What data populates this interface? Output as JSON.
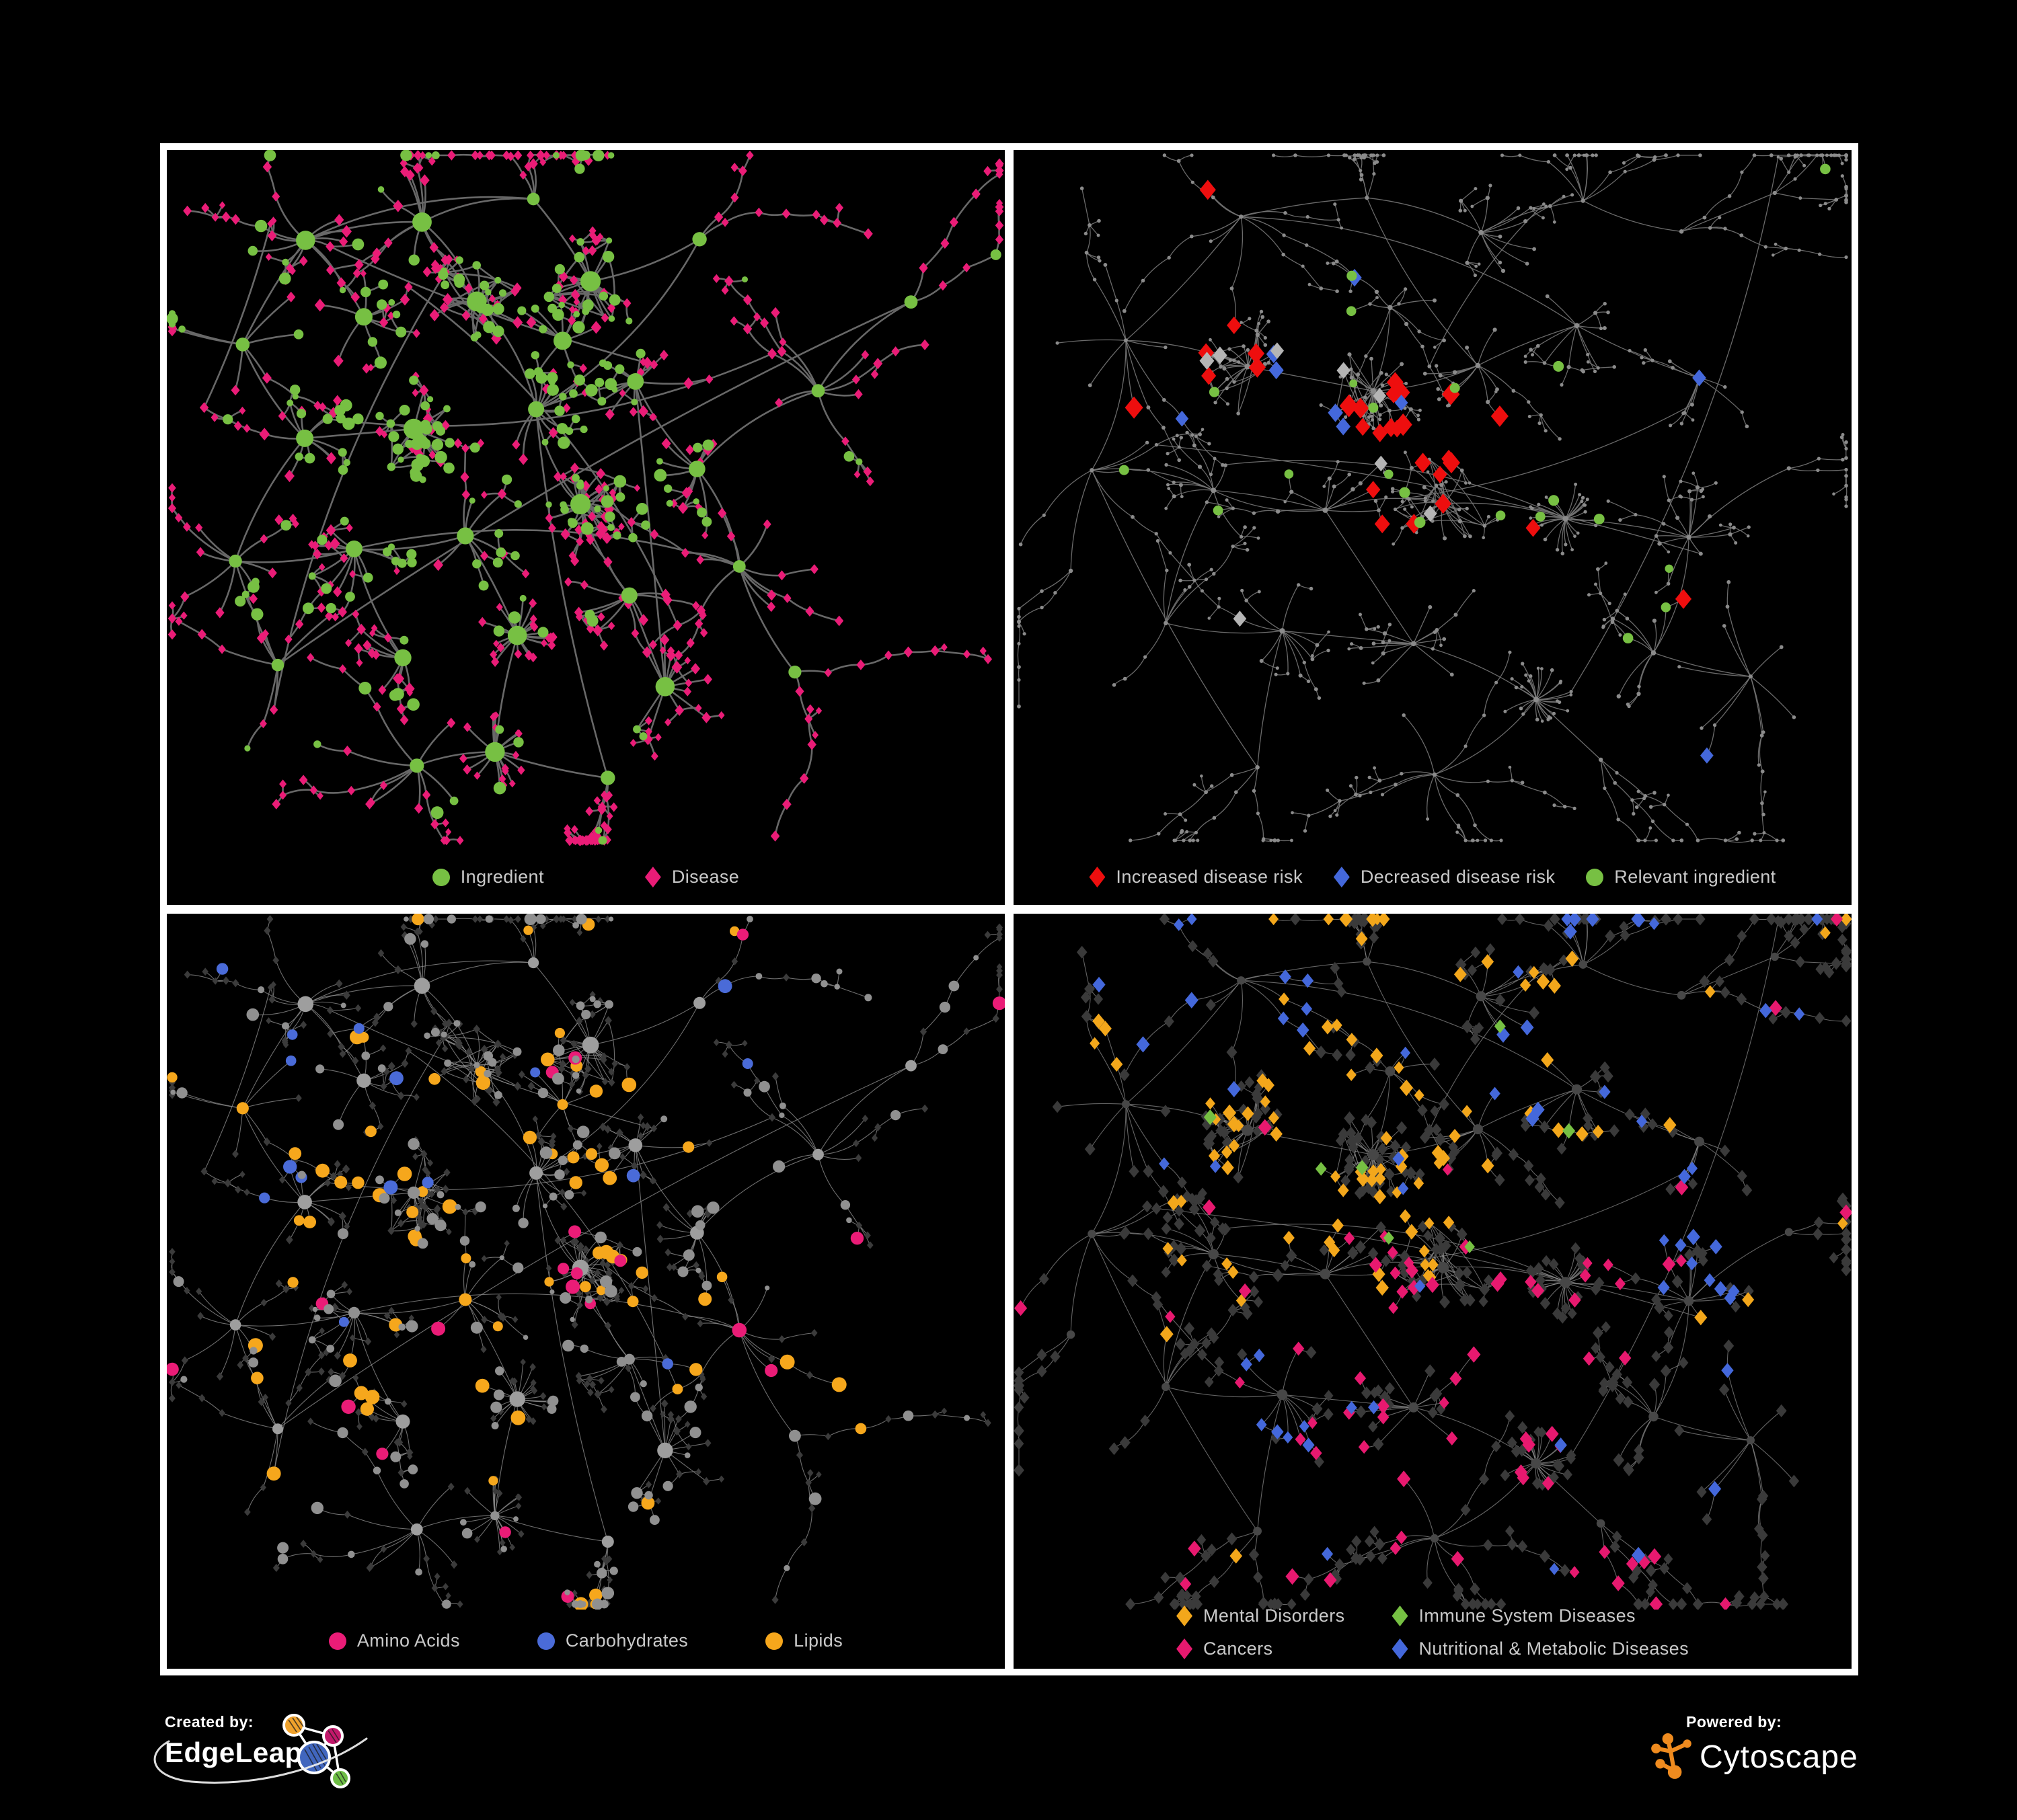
{
  "page": {
    "background": "#000000",
    "frame_color": "#ffffff",
    "panel_background": "#000000",
    "legend_text_color": "#c9c9c9"
  },
  "panels": [
    {
      "id": "ingredient-disease",
      "layout": "left",
      "legend": {
        "rows": 1,
        "items": [
          {
            "label": "Ingredient",
            "shape": "circle",
            "color": "#77C043"
          },
          {
            "label": "Disease",
            "shape": "diamond",
            "color": "#EA1C77"
          }
        ]
      },
      "style": {
        "seed": 11,
        "highlightHubs": false,
        "edge": {
          "color": "#686868",
          "width": 2.6,
          "opacity": 1
        },
        "base": {
          "shape": "diamond",
          "color": "#EA1C77",
          "smin": 5,
          "smax": 9.5
        },
        "hub": {
          "shape": "circle",
          "color": "#77C043",
          "smin": 8,
          "smax": 16
        },
        "highlights": [
          {
            "name": "ingredient-leaves",
            "shape": "circle",
            "color": "#77C043",
            "count": 235,
            "size": 7,
            "sizeJit": 2.5,
            "base": 0.25,
            "foci": [
              [
                0.5,
                0.2,
                0.08
              ],
              [
                0.44,
                0.4,
                0.16
              ],
              [
                0.3,
                0.45,
                0.22
              ]
            ]
          }
        ]
      }
    },
    {
      "id": "disease-risk",
      "layout": "right",
      "legend": {
        "rows": 1,
        "items": [
          {
            "label": "Increased disease risk",
            "shape": "diamond",
            "color": "#EE0E0E"
          },
          {
            "label": "Decreased disease risk",
            "shape": "diamond",
            "color": "#4468DB"
          },
          {
            "label": "Relevant ingredient",
            "shape": "circle",
            "color": "#77C043"
          }
        ]
      },
      "style": {
        "seed": 22,
        "highlightHubs": true,
        "edge": {
          "color": "#757575",
          "width": 1.3,
          "opacity": 0.9
        },
        "base": {
          "shape": "circle",
          "color": "#8b8b8b",
          "smin": 2.3,
          "smax": 3.4
        },
        "hub": {
          "shape": "circle",
          "color": "#8b8b8b",
          "smin": 2.8,
          "smax": 4.4
        },
        "highlights": [
          {
            "name": "increased-risk",
            "shape": "diamond",
            "color": "#EE0E0E",
            "count": 30,
            "size": 13.5,
            "sizeJit": 2,
            "base": 0.03,
            "foci": [
              [
                0.38,
                0.36,
                0.12
              ],
              [
                0.54,
                0.42,
                0.1
              ],
              [
                0.7,
                0.72,
                0.05
              ]
            ]
          },
          {
            "name": "decreased-risk",
            "shape": "diamond",
            "color": "#4468DB",
            "count": 9,
            "size": 11.5,
            "sizeJit": 1,
            "base": 0.02,
            "foci": [
              [
                0.33,
                0.36,
                0.05
              ],
              [
                0.825,
                0.34,
                0.03
              ]
            ]
          },
          {
            "name": "unchanged-risk",
            "shape": "diamond",
            "color": "#B5B5B5",
            "count": 8,
            "size": 11,
            "sizeJit": 1,
            "base": 0.02,
            "foci": [
              [
                0.42,
                0.5,
                0.1
              ],
              [
                0.3,
                0.3,
                0.1
              ]
            ]
          },
          {
            "name": "relevant-ingredient",
            "shape": "circle",
            "color": "#77C043",
            "count": 21,
            "size": 7.5,
            "sizeJit": 1.5,
            "base": 0.05,
            "foci": [
              [
                0.37,
                0.38,
                0.1
              ],
              [
                0.55,
                0.5,
                0.15
              ],
              [
                0.79,
                0.35,
                0.04
              ]
            ]
          }
        ]
      }
    },
    {
      "id": "compound-class",
      "layout": "left",
      "legend": {
        "rows": 1,
        "items": [
          {
            "label": "Amino Acids",
            "shape": "circle",
            "color": "#EA1C77"
          },
          {
            "label": "Carbohydrates",
            "shape": "circle",
            "color": "#4A6BD8"
          },
          {
            "label": "Lipids",
            "shape": "circle",
            "color": "#F6A71C"
          }
        ]
      },
      "style": {
        "seed": 33,
        "highlightHubs": true,
        "edge": {
          "color": "#8a8a8a",
          "width": 1.1,
          "opacity": 0.8
        },
        "base": {
          "shape": "diamond",
          "color": "#3b3b3b",
          "smin": 4.5,
          "smax": 6.5
        },
        "hub": {
          "shape": "circle",
          "color": "#9e9e9e",
          "smin": 7,
          "smax": 13
        },
        "highlights": [
          {
            "name": "lipids",
            "shape": "circle",
            "color": "#F6A71C",
            "count": 74,
            "size": 9,
            "sizeJit": 2,
            "base": 0.12,
            "foci": [
              [
                0.5,
                0.2,
                0.07
              ],
              [
                0.43,
                0.38,
                0.13
              ],
              [
                0.3,
                0.55,
                0.3
              ]
            ]
          },
          {
            "name": "carbohydrates",
            "shape": "circle",
            "color": "#4A6BD8",
            "count": 16,
            "size": 9,
            "sizeJit": 1.5,
            "base": 0.06,
            "foci": [
              [
                0.52,
                0.21,
                0.05
              ],
              [
                0.12,
                0.3,
                0.15
              ]
            ]
          },
          {
            "name": "amino-acids",
            "shape": "circle",
            "color": "#EA1C77",
            "count": 20,
            "size": 9.5,
            "sizeJit": 1.5,
            "base": 0.5,
            "foci": [
              [
                0.3,
                0.62,
                0.25
              ],
              [
                0.6,
                0.75,
                0.2
              ]
            ]
          },
          {
            "name": "other-ingredients",
            "shape": "circle",
            "color": "#909090",
            "count": 185,
            "size": 6.5,
            "sizeJit": 3,
            "base": 1,
            "foci": []
          }
        ]
      }
    },
    {
      "id": "disease-class",
      "layout": "right",
      "legend": {
        "rows": 2,
        "items": [
          {
            "label": "Mental Disorders",
            "shape": "diamond",
            "color": "#F3A71B"
          },
          {
            "label": "Immune System Diseases",
            "shape": "diamond",
            "color": "#76C043"
          },
          {
            "label": "Cancers",
            "shape": "diamond",
            "color": "#E7196F"
          },
          {
            "label": "Nutritional & Metabolic Diseases",
            "shape": "diamond",
            "color": "#4468DB"
          }
        ]
      },
      "style": {
        "seed": 44,
        "highlightHubs": false,
        "edge": {
          "color": "#8f8f8f",
          "width": 1.1,
          "opacity": 0.7
        },
        "base": {
          "shape": "diamond",
          "color": "#3a3a3a",
          "smin": 7.5,
          "smax": 9.5
        },
        "hub": {
          "shape": "circle",
          "color": "#474747",
          "smin": 5.5,
          "smax": 8.5
        },
        "highlights": [
          {
            "name": "mental-disorders",
            "shape": "diamond",
            "color": "#F3A71B",
            "count": 100,
            "size": 9.5,
            "sizeJit": 1.5,
            "base": 0.04,
            "foci": [
              [
                0.29,
                0.5,
                0.09
              ],
              [
                0.33,
                0.28,
                0.16
              ],
              [
                0.52,
                0.08,
                0.2
              ]
            ]
          },
          {
            "name": "cancers",
            "shape": "diamond",
            "color": "#E7196F",
            "count": 72,
            "size": 9.5,
            "sizeJit": 1.5,
            "base": 0.04,
            "foci": [
              [
                0.56,
                0.53,
                0.1
              ],
              [
                0.87,
                0.24,
                0.05
              ],
              [
                0.52,
                0.86,
                0.25
              ]
            ]
          },
          {
            "name": "nutritional-metabolic",
            "shape": "diamond",
            "color": "#4468DB",
            "count": 62,
            "size": 9.5,
            "sizeJit": 1.5,
            "base": 0.06,
            "foci": [
              [
                0.72,
                0.14,
                0.1
              ],
              [
                0.8,
                0.46,
                0.05
              ],
              [
                0.36,
                0.72,
                0.08
              ],
              [
                0.9,
                0.62,
                0.06
              ],
              [
                0.2,
                0.12,
                0.1
              ]
            ]
          },
          {
            "name": "immune-system",
            "shape": "diamond",
            "color": "#76C043",
            "count": 7,
            "size": 9.5,
            "sizeJit": 1,
            "base": 0.3,
            "foci": [
              [
                0.5,
                0.42,
                0.25
              ]
            ]
          }
        ]
      }
    }
  ],
  "network_layouts": {
    "left": {
      "seed": 7,
      "clusters": [
        [
          0.175,
          0.14,
          "med"
        ],
        [
          0.3,
          0.1,
          "med"
        ],
        [
          0.43,
          0.06,
          "chain"
        ],
        [
          0.1,
          0.28,
          "spray"
        ],
        [
          0.24,
          0.25,
          "med"
        ],
        [
          0.37,
          0.22,
          "dense"
        ],
        [
          0.5,
          0.2,
          "dense"
        ],
        [
          0.63,
          0.13,
          "chain"
        ],
        [
          0.16,
          0.42,
          "med"
        ],
        [
          0.29,
          0.4,
          "dense"
        ],
        [
          0.44,
          0.38,
          "med"
        ],
        [
          0.56,
          0.33,
          "med"
        ],
        [
          0.08,
          0.58,
          "spray"
        ],
        [
          0.22,
          0.57,
          "med"
        ],
        [
          0.36,
          0.55,
          "med"
        ],
        [
          0.5,
          0.5,
          "dense"
        ],
        [
          0.64,
          0.45,
          "med"
        ],
        [
          0.78,
          0.35,
          "spray"
        ],
        [
          0.88,
          0.22,
          "chain"
        ],
        [
          0.14,
          0.74,
          "spray"
        ],
        [
          0.28,
          0.72,
          "med"
        ],
        [
          0.42,
          0.7,
          "fan"
        ],
        [
          0.55,
          0.65,
          "med"
        ],
        [
          0.68,
          0.6,
          "spray"
        ],
        [
          0.4,
          0.86,
          "fan"
        ],
        [
          0.52,
          0.9,
          "chain"
        ],
        [
          0.3,
          0.88,
          "spray"
        ],
        [
          0.74,
          0.75,
          "chain"
        ],
        [
          0.6,
          0.78,
          "med"
        ],
        [
          0.47,
          0.27,
          "med"
        ]
      ]
    },
    "right": {
      "seed": 19,
      "clusters": [
        [
          0.28,
          0.1,
          "spray"
        ],
        [
          0.42,
          0.07,
          "chain"
        ],
        [
          0.55,
          0.12,
          "med"
        ],
        [
          0.68,
          0.08,
          "spray"
        ],
        [
          0.8,
          0.12,
          "chain"
        ],
        [
          0.91,
          0.07,
          "chain"
        ],
        [
          0.14,
          0.28,
          "spray"
        ],
        [
          0.28,
          0.32,
          "dense"
        ],
        [
          0.42,
          0.35,
          "dense"
        ],
        [
          0.55,
          0.3,
          "med"
        ],
        [
          0.68,
          0.25,
          "med"
        ],
        [
          0.82,
          0.33,
          "med"
        ],
        [
          0.1,
          0.47,
          "spray"
        ],
        [
          0.24,
          0.5,
          "med"
        ],
        [
          0.38,
          0.52,
          "med"
        ],
        [
          0.52,
          0.5,
          "dense"
        ],
        [
          0.66,
          0.52,
          "fan"
        ],
        [
          0.8,
          0.55,
          "med"
        ],
        [
          0.92,
          0.45,
          "chain"
        ],
        [
          0.18,
          0.68,
          "spray"
        ],
        [
          0.33,
          0.7,
          "med"
        ],
        [
          0.48,
          0.72,
          "med"
        ],
        [
          0.62,
          0.78,
          "fan"
        ],
        [
          0.76,
          0.72,
          "med"
        ],
        [
          0.88,
          0.75,
          "spray"
        ],
        [
          0.3,
          0.88,
          "chain"
        ],
        [
          0.5,
          0.9,
          "spray"
        ],
        [
          0.7,
          0.88,
          "chain"
        ],
        [
          0.06,
          0.6,
          "chain"
        ],
        [
          0.45,
          0.22,
          "med"
        ]
      ]
    }
  },
  "footer": {
    "created_by_label": "Created by:",
    "created_by_name": "EdgeLeap",
    "powered_by_label": "Powered by:",
    "powered_by_name": "Cytoscape",
    "edgeleap_glyph_colors": {
      "orange": "#F0A22C",
      "magenta": "#C2186B",
      "blue": "#4166BE",
      "green": "#6EBE45"
    },
    "cytoscape_glyph_color": "#EF8B1F"
  }
}
